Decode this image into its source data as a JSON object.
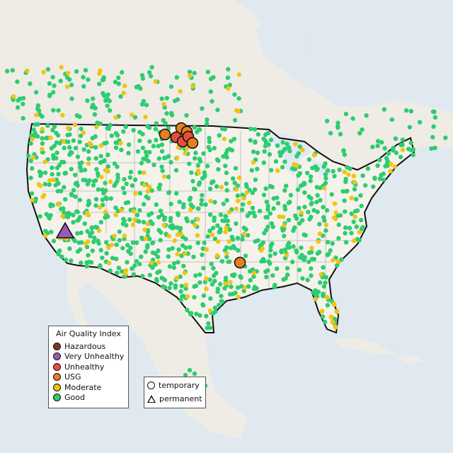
{
  "legend": {
    "title": "Air Quality Index",
    "categories": [
      {
        "label": "Hazardous",
        "color": "#7b3a22"
      },
      {
        "label": "Very Unhealthy",
        "color": "#9b59b6"
      },
      {
        "label": "Unhealthy",
        "color": "#e84c3d"
      },
      {
        "label": "USG",
        "color": "#e67e22"
      },
      {
        "label": "Moderate",
        "color": "#f1c40f"
      },
      {
        "label": "Good",
        "color": "#2ecc71"
      }
    ]
  },
  "type_legend": {
    "temporary": "temporary",
    "permanent": "permanent"
  },
  "map_colors": {
    "water": "#dfe9ef",
    "land": "#f1efe9",
    "us_land": "#f4f1ea",
    "border": "#111111",
    "state_lines": "#b5b5b5"
  }
}
